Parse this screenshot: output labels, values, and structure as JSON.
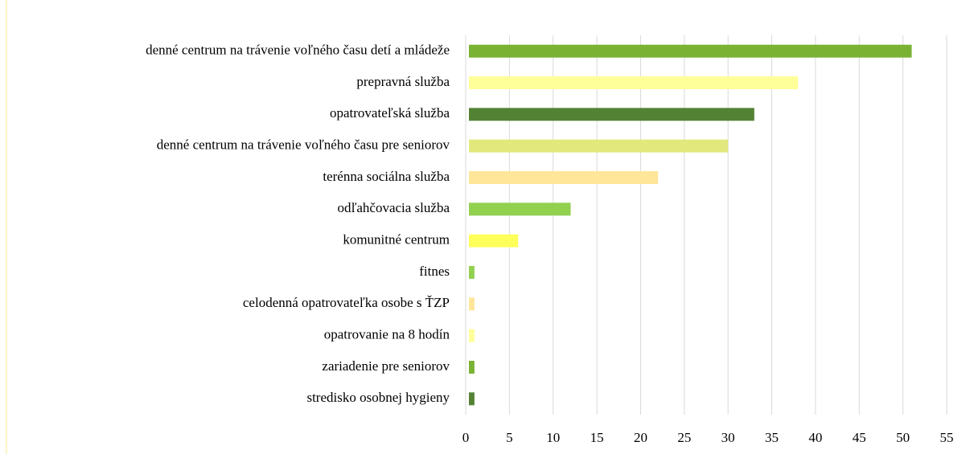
{
  "chart_data": {
    "type": "barh",
    "categories": [
      "denné centrum na trávenie voľného času detí a mládeže",
      "prepravná služba",
      "opatrovateľská služba",
      "denné centrum na trávenie voľného času pre seniorov",
      "terénna sociálna služba",
      "odľahčovacia služba",
      "komunitné centrum",
      "fitnes",
      "celodenná opatrovateľka osobe s ŤZP",
      "opatrovanie na 8 hodín",
      "zariadenie pre seniorov",
      "stredisko osobnej hygieny"
    ],
    "values": [
      51,
      38,
      33,
      30,
      22,
      12,
      6,
      1,
      1,
      1,
      1,
      1
    ],
    "colors": [
      "#7ab234",
      "#ffff99",
      "#548235",
      "#e2e87c",
      "#ffe699",
      "#92d050",
      "#ffff5a",
      "#92d050",
      "#ffe699",
      "#ffff99",
      "#7ab234",
      "#548235"
    ],
    "xlim": [
      0,
      55
    ],
    "xticks": [
      0,
      5,
      10,
      15,
      20,
      25,
      30,
      35,
      40,
      45,
      50,
      55
    ],
    "grid": true
  }
}
